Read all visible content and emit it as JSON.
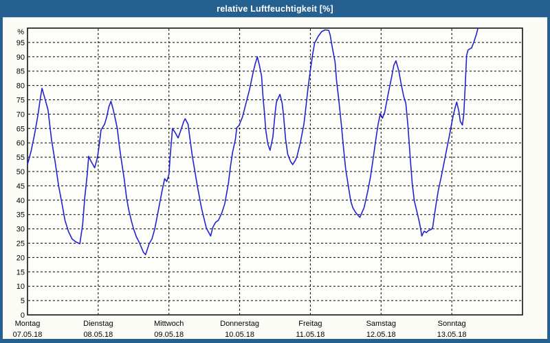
{
  "window": {
    "title": "relative Luftfeuchtigkeit [%]",
    "title_bar_color": "#26608F",
    "frame_color": "#26608F",
    "content_background": "#FCFCF7",
    "title_text_color": "#ffffff"
  },
  "chart_data": {
    "type": "line",
    "title": "relative Luftfeuchtigkeit [%]",
    "ylabel": "%",
    "y_axis_unit_label": "%",
    "ylim": [
      0,
      100
    ],
    "y_tick_step": 5,
    "y_tick_max_labeled": 95,
    "grid": "dashed",
    "grid_color": "#000000",
    "plot_background": "#FDFDFA",
    "plot_border_color": "#000000",
    "line_color": "#2222CC",
    "x_range_days": [
      0,
      7
    ],
    "x_days": [
      {
        "name": "Montag",
        "date": "07.05.18"
      },
      {
        "name": "Dienstag",
        "date": "08.05.18"
      },
      {
        "name": "Mittwoch",
        "date": "09.05.18"
      },
      {
        "name": "Donnerstag",
        "date": "10.05.18"
      },
      {
        "name": "Freitag",
        "date": "11.05.18"
      },
      {
        "name": "Samstag",
        "date": "12.05.18"
      },
      {
        "name": "Sonntag",
        "date": "13.05.18"
      }
    ],
    "series": [
      {
        "name": "relative Luftfeuchtigkeit",
        "unit": "%",
        "x_unit": "days since Monday 07.05.18 00:00",
        "points": [
          [
            0.0,
            52.5
          ],
          [
            0.05,
            57.0
          ],
          [
            0.1,
            63.0
          ],
          [
            0.15,
            70.0
          ],
          [
            0.175,
            74.5
          ],
          [
            0.205,
            79.0
          ],
          [
            0.24,
            76.0
          ],
          [
            0.29,
            71.5
          ],
          [
            0.34,
            61.0
          ],
          [
            0.39,
            53.5
          ],
          [
            0.44,
            45.0
          ],
          [
            0.49,
            38.5
          ],
          [
            0.53,
            33.0
          ],
          [
            0.58,
            29.0
          ],
          [
            0.63,
            26.5
          ],
          [
            0.68,
            25.5
          ],
          [
            0.74,
            24.8
          ],
          [
            0.78,
            31.5
          ],
          [
            0.81,
            41.0
          ],
          [
            0.845,
            49.0
          ],
          [
            0.865,
            55.3
          ],
          [
            0.9,
            53.5
          ],
          [
            0.95,
            51.3
          ],
          [
            0.99,
            55.0
          ],
          [
            1.01,
            58.5
          ],
          [
            1.04,
            64.5
          ],
          [
            1.09,
            66.5
          ],
          [
            1.12,
            69.0
          ],
          [
            1.15,
            72.5
          ],
          [
            1.18,
            74.5
          ],
          [
            1.21,
            71.8
          ],
          [
            1.24,
            68.5
          ],
          [
            1.27,
            65.0
          ],
          [
            1.3,
            58.7
          ],
          [
            1.33,
            53.5
          ],
          [
            1.37,
            47.0
          ],
          [
            1.4,
            41.0
          ],
          [
            1.43,
            36.8
          ],
          [
            1.47,
            32.7
          ],
          [
            1.5,
            30.0
          ],
          [
            1.54,
            27.2
          ],
          [
            1.58,
            25.3
          ],
          [
            1.64,
            21.8
          ],
          [
            1.67,
            21.0
          ],
          [
            1.72,
            24.8
          ],
          [
            1.76,
            26.5
          ],
          [
            1.8,
            30.0
          ],
          [
            1.85,
            36.4
          ],
          [
            1.9,
            42.9
          ],
          [
            1.94,
            47.5
          ],
          [
            1.97,
            46.5
          ],
          [
            2.0,
            49.0
          ],
          [
            2.02,
            56.0
          ],
          [
            2.05,
            65.0
          ],
          [
            2.09,
            63.5
          ],
          [
            2.13,
            61.7
          ],
          [
            2.17,
            64.5
          ],
          [
            2.21,
            67.5
          ],
          [
            2.23,
            68.4
          ],
          [
            2.27,
            66.5
          ],
          [
            2.33,
            55.5
          ],
          [
            2.4,
            45.2
          ],
          [
            2.46,
            37.3
          ],
          [
            2.53,
            30.2
          ],
          [
            2.59,
            27.5
          ],
          [
            2.62,
            30.5
          ],
          [
            2.66,
            32.3
          ],
          [
            2.7,
            33.0
          ],
          [
            2.75,
            35.7
          ],
          [
            2.79,
            38.8
          ],
          [
            2.84,
            45.7
          ],
          [
            2.87,
            51.7
          ],
          [
            2.9,
            56.7
          ],
          [
            2.94,
            61.2
          ],
          [
            2.96,
            65.3
          ],
          [
            2.99,
            66.0
          ],
          [
            3.04,
            69.0
          ],
          [
            3.09,
            73.8
          ],
          [
            3.14,
            78.6
          ],
          [
            3.19,
            84.5
          ],
          [
            3.22,
            87.5
          ],
          [
            3.25,
            90.0
          ],
          [
            3.28,
            87.0
          ],
          [
            3.31,
            83.3
          ],
          [
            3.33,
            76.2
          ],
          [
            3.35,
            70.7
          ],
          [
            3.37,
            64.3
          ],
          [
            3.4,
            59.5
          ],
          [
            3.43,
            57.4
          ],
          [
            3.47,
            62.0
          ],
          [
            3.5,
            70.0
          ],
          [
            3.52,
            74.2
          ],
          [
            3.57,
            76.9
          ],
          [
            3.6,
            74.0
          ],
          [
            3.62,
            69.8
          ],
          [
            3.65,
            61.2
          ],
          [
            3.68,
            56.0
          ],
          [
            3.72,
            53.5
          ],
          [
            3.75,
            52.4
          ],
          [
            3.79,
            54.0
          ],
          [
            3.81,
            55.2
          ],
          [
            3.86,
            60.2
          ],
          [
            3.91,
            66.7
          ],
          [
            3.94,
            73.1
          ],
          [
            3.97,
            79.8
          ],
          [
            4.0,
            85.2
          ],
          [
            4.03,
            90.5
          ],
          [
            4.06,
            94.8
          ],
          [
            4.11,
            97.1
          ],
          [
            4.16,
            98.8
          ],
          [
            4.21,
            99.4
          ],
          [
            4.26,
            99.2
          ],
          [
            4.28,
            97.6
          ],
          [
            4.31,
            93.3
          ],
          [
            4.35,
            88.1
          ],
          [
            4.37,
            81.7
          ],
          [
            4.4,
            75.5
          ],
          [
            4.44,
            65.9
          ],
          [
            4.47,
            57.9
          ],
          [
            4.5,
            50.7
          ],
          [
            4.54,
            44.5
          ],
          [
            4.57,
            39.8
          ],
          [
            4.6,
            37.4
          ],
          [
            4.64,
            35.7
          ],
          [
            4.7,
            34.0
          ],
          [
            4.76,
            37.4
          ],
          [
            4.81,
            42.9
          ],
          [
            4.85,
            48.1
          ],
          [
            4.89,
            54.8
          ],
          [
            4.93,
            61.9
          ],
          [
            4.96,
            66.7
          ],
          [
            4.99,
            70.2
          ],
          [
            5.02,
            68.6
          ],
          [
            5.05,
            70.5
          ],
          [
            5.1,
            77.0
          ],
          [
            5.15,
            83.0
          ],
          [
            5.18,
            87.0
          ],
          [
            5.21,
            88.6
          ],
          [
            5.25,
            85.2
          ],
          [
            5.28,
            81.0
          ],
          [
            5.32,
            76.2
          ],
          [
            5.35,
            73.8
          ],
          [
            5.38,
            65.9
          ],
          [
            5.41,
            55.5
          ],
          [
            5.44,
            46.0
          ],
          [
            5.47,
            39.8
          ],
          [
            5.51,
            35.7
          ],
          [
            5.54,
            32.5
          ],
          [
            5.56,
            30.0
          ],
          [
            5.575,
            27.5
          ],
          [
            5.61,
            29.2
          ],
          [
            5.64,
            28.7
          ],
          [
            5.67,
            29.4
          ],
          [
            5.71,
            29.8
          ],
          [
            5.73,
            30.5
          ],
          [
            5.75,
            34.0
          ],
          [
            5.78,
            39.0
          ],
          [
            5.81,
            43.5
          ],
          [
            5.85,
            48.0
          ],
          [
            5.89,
            53.0
          ],
          [
            5.93,
            58.0
          ],
          [
            5.97,
            63.0
          ],
          [
            6.0,
            67.0
          ],
          [
            6.02,
            69.5
          ],
          [
            6.05,
            72.5
          ],
          [
            6.07,
            74.2
          ],
          [
            6.1,
            71.0
          ],
          [
            6.12,
            67.5
          ],
          [
            6.15,
            66.2
          ],
          [
            6.17,
            70.0
          ],
          [
            6.19,
            80.0
          ],
          [
            6.21,
            90.5
          ],
          [
            6.23,
            92.4
          ],
          [
            6.28,
            93.1
          ],
          [
            6.31,
            95.0
          ],
          [
            6.35,
            98.0
          ],
          [
            6.37,
            100.0
          ]
        ]
      }
    ]
  }
}
